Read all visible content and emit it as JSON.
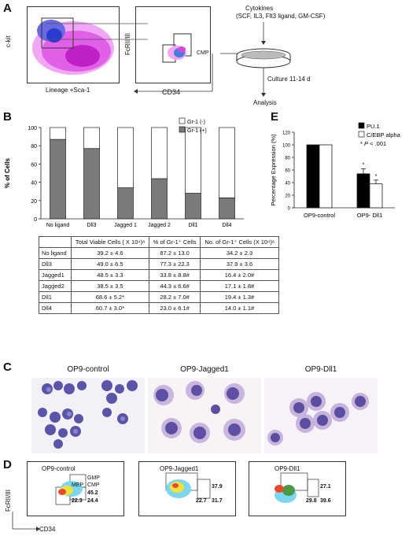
{
  "panel_letters": {
    "a": "A",
    "b": "B",
    "c": "C",
    "d": "D",
    "e": "E"
  },
  "panel_a": {
    "plot1": {
      "ylabel": "c-kit",
      "xlabel": "Lineage +Sca-1"
    },
    "plot2": {
      "ylabel": "FcRII/III",
      "xlabel": "CD34",
      "gate": "CMP"
    },
    "cytokines_title": "Cytokines",
    "cytokines_list": "(SCF, IL3, Flt3 ligand, GM-CSF)",
    "culture": "Culture 11-14 d",
    "analysis": "Analysis"
  },
  "colors": {
    "grey": "#7a7a7a",
    "black": "#000000",
    "white": "#ffffff"
  },
  "chart_data": [
    {
      "type": "bar",
      "ylabel": "% of Cells",
      "ylim": [
        0,
        100
      ],
      "yticks": [
        "0",
        "20",
        "40",
        "60",
        "80",
        "100"
      ],
      "categories": [
        "No ligand",
        "Dll3",
        "Jagged 1",
        "Jagged 2",
        "Dll1",
        "Dll4"
      ],
      "series": [
        {
          "name": "Gr-1 (+)",
          "color": "#7a7a7a",
          "values": [
            87,
            77,
            34,
            44,
            28,
            23
          ]
        },
        {
          "name": "Gr-1 (-)",
          "color": "#ffffff",
          "values": [
            13,
            23,
            66,
            56,
            72,
            77
          ]
        }
      ],
      "stacked": true,
      "legend_position": "top-right"
    },
    {
      "type": "bar",
      "ylabel": "Percentage Expression (%)",
      "ylim": [
        0,
        120
      ],
      "yticks": [
        "0",
        "20",
        "40",
        "60",
        "80",
        "100",
        "120"
      ],
      "categories": [
        "OP9-control",
        "OP9- Dll1"
      ],
      "series": [
        {
          "name": "PU.1",
          "color": "#000000",
          "values": [
            100,
            54
          ],
          "errors": [
            0,
            8
          ]
        },
        {
          "name": "C/EBP alpha",
          "color": "#ffffff",
          "values": [
            100,
            38
          ],
          "errors": [
            0,
            6
          ]
        }
      ],
      "significance_marks": [
        {
          "category": 1,
          "series": 0,
          "text": "*"
        },
        {
          "category": 1,
          "series": 1,
          "text": "*"
        }
      ],
      "legend_note": "* P < .001",
      "legend_note_star": "*",
      "legend_note_p": "P",
      "legend_note_rest": " < .001",
      "legend_position": "top-right"
    }
  ],
  "table": {
    "headers": [
      "",
      "Total Viable Cells ( X 10⁴)ᵃ",
      "% of Gr-1⁺ Cells",
      "No. of Gr-1⁺ Cells (X 10⁴)ᵃ"
    ],
    "rows": [
      [
        "No ligand",
        "39.2 ± 4.6",
        "87.2 ± 13.0",
        "34.2 ± 2.3"
      ],
      [
        "Dll3",
        "49.0 ± 6.5",
        "77.3 ± 22.3",
        "37.9 ± 3.6"
      ],
      [
        "Jagged1",
        "48.5 ± 3.3",
        "33.8 ± 8.8#",
        "16.4 ± 2.0#"
      ],
      [
        "Jagged2",
        "38.5 ± 3.5",
        "44.3 ± 6.6#",
        "17.1 ± 1.8#"
      ],
      [
        "Dll1",
        "68.6 ± 5.2*",
        "28.2 ± 7.0#",
        "19.4 ± 1.3#"
      ],
      [
        "Dll4",
        "60.7 ± 3.0*",
        "23.0 ± 6.1#",
        "14.0 ± 1.1#"
      ]
    ]
  },
  "panel_c": {
    "titles": [
      "OP9-control",
      "OP9-Jagged1",
      "OP9-Dll1"
    ]
  },
  "panel_d": {
    "ylabel": "FcRII/III",
    "xlabel": "CD34",
    "plots": [
      {
        "title": "OP9-control",
        "gmp_label": "GMP",
        "cmp_label": "CMP",
        "mep_label": "MEP",
        "gmp": "45.2",
        "mep": "22.3",
        "cmp": "24.4"
      },
      {
        "title": "OP9-Jagged1",
        "gmp": "37.9",
        "mep": "22.7",
        "cmp": "31.7"
      },
      {
        "title": "OP9-Dll1",
        "gmp": "27.1",
        "mep": "29.8",
        "cmp": "39.6"
      }
    ]
  }
}
